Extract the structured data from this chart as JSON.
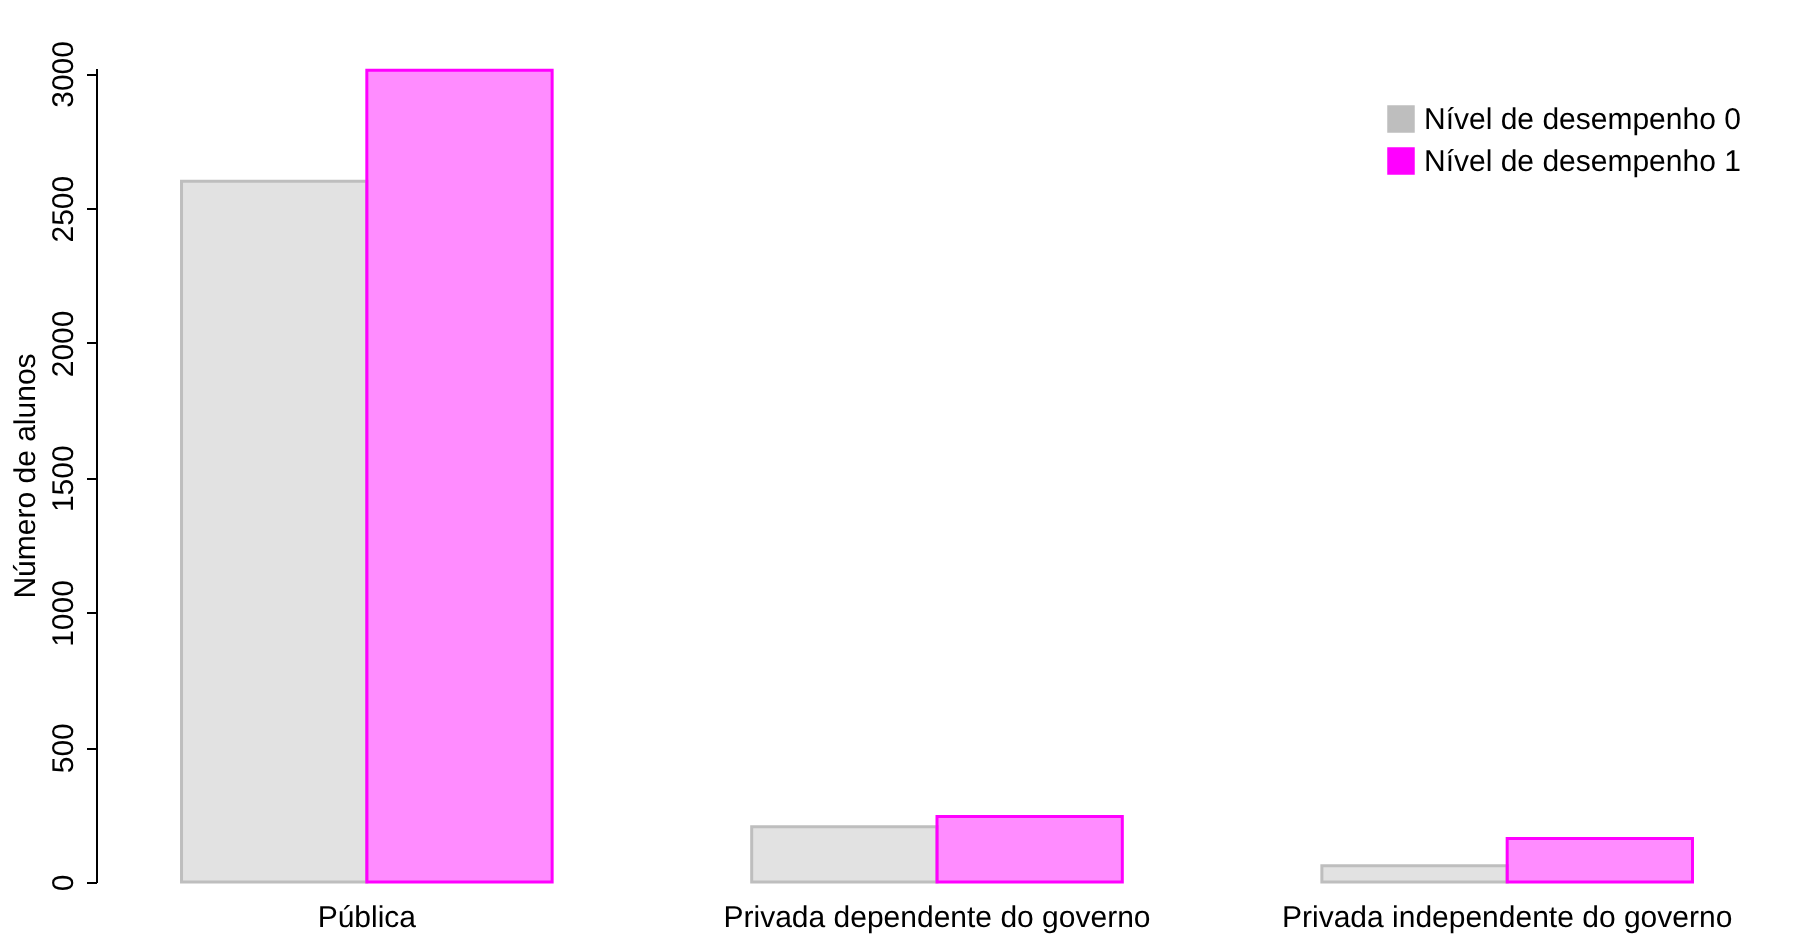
{
  "chart_data": {
    "type": "bar",
    "ylabel": "Número de alunos",
    "categories": [
      "Pública",
      "Privada dependente do governo",
      "Privada independente do governo"
    ],
    "series": [
      {
        "name": "Nível de desempenho 0",
        "color": "#bebebe",
        "values": [
          2600,
          205,
          60
        ]
      },
      {
        "name": "Nível de desempenho 1",
        "color": "#ff00ff",
        "values": [
          3012,
          243,
          161
        ]
      }
    ],
    "ylim": [
      0,
      3020
    ],
    "yticks": [
      0,
      500,
      1000,
      1500,
      2000,
      2500,
      3000
    ],
    "grid": false,
    "legend": "top right"
  }
}
